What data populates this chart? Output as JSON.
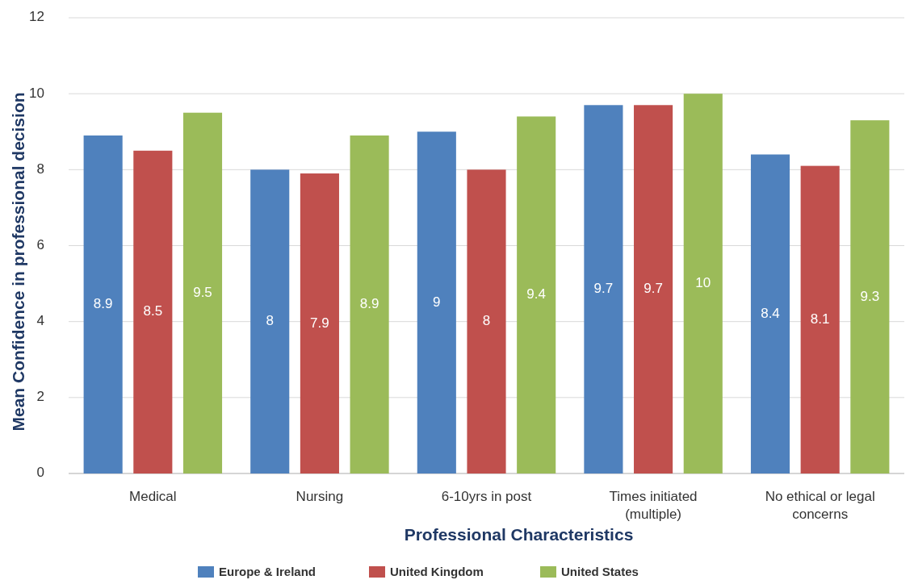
{
  "chart_data": {
    "type": "bar",
    "xlabel": "Professional  Characteristics",
    "ylabel": "Mean Confidence in professional decision",
    "categories": [
      "Medical",
      "Nursing",
      "6-10yrs in post",
      "Times initiated (multiple)",
      "No ethical or legal concerns"
    ],
    "series": [
      {
        "name": "Europe & Ireland",
        "color": "#4f81bd",
        "values": [
          8.9,
          8,
          9,
          9.7,
          8.4
        ]
      },
      {
        "name": "United Kingdom",
        "color": "#c0504d",
        "values": [
          8.5,
          7.9,
          8,
          9.7,
          8.1
        ]
      },
      {
        "name": "United States",
        "color": "#9bbb59",
        "values": [
          9.5,
          8.9,
          9.4,
          10,
          9.3
        ]
      }
    ],
    "ylim": [
      0,
      12
    ],
    "yticks": [
      0,
      2,
      4,
      6,
      8,
      10,
      12
    ],
    "grid": "y",
    "legend": "bottom",
    "data_labels": true
  }
}
